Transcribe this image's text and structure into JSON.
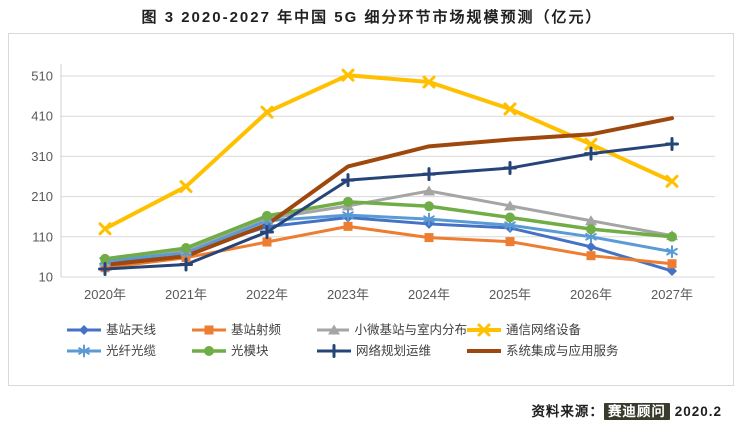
{
  "title": "图 3 2020-2027 年中国 5G 细分环节市场规模预测（亿元）",
  "source": {
    "prefix": "资料来源：",
    "publisher": "赛迪顾问",
    "date": "2020.2"
  },
  "chart_data": {
    "type": "line",
    "title": "图 3 2020-2027 年中国 5G 细分环节市场规模预测（亿元）",
    "unit": "亿元",
    "categories": [
      "2020年",
      "2021年",
      "2022年",
      "2023年",
      "2024年",
      "2025年",
      "2026年",
      "2027年"
    ],
    "y_ticks": [
      10,
      110,
      210,
      310,
      410,
      510
    ],
    "ylim": [
      10,
      535
    ],
    "grid": true,
    "legend_position": "bottom",
    "axis_label_color": "#595959",
    "gridline_color": "#d9d9d9",
    "series": [
      {
        "name": "基站天线",
        "color": "#4472C4",
        "marker": "diamond",
        "line_width": 3,
        "values": [
          45,
          72,
          135,
          158,
          142,
          132,
          85,
          25
        ]
      },
      {
        "name": "基站射频",
        "color": "#ED7D31",
        "marker": "square",
        "line_width": 3,
        "values": [
          33,
          58,
          97,
          136,
          108,
          98,
          63,
          43
        ]
      },
      {
        "name": "小微基站与室内分布",
        "color": "#A5A5A5",
        "marker": "triangle",
        "line_width": 3,
        "values": [
          48,
          78,
          155,
          187,
          224,
          187,
          150,
          113
        ]
      },
      {
        "name": "通信网络设备",
        "color": "#FFC000",
        "marker": "x",
        "line_width": 4,
        "values": [
          130,
          235,
          420,
          512,
          495,
          428,
          340,
          248
        ]
      },
      {
        "name": "光纤光缆",
        "color": "#5B9BD5",
        "marker": "asterisk",
        "line_width": 3,
        "values": [
          50,
          70,
          150,
          164,
          154,
          139,
          110,
          73
        ]
      },
      {
        "name": "光模块",
        "color": "#70AD47",
        "marker": "circle",
        "line_width": 3.5,
        "values": [
          55,
          82,
          162,
          197,
          186,
          158,
          129,
          110
        ]
      },
      {
        "name": "网络规划运维",
        "color": "#264478",
        "marker": "plus",
        "line_width": 3,
        "values": [
          30,
          41,
          122,
          251,
          266,
          281,
          317,
          341
        ]
      },
      {
        "name": "系统集成与应用服务",
        "color": "#9E480E",
        "marker": "none",
        "line_width": 4,
        "values": [
          40,
          62,
          140,
          285,
          335,
          352,
          365,
          405
        ]
      }
    ]
  }
}
